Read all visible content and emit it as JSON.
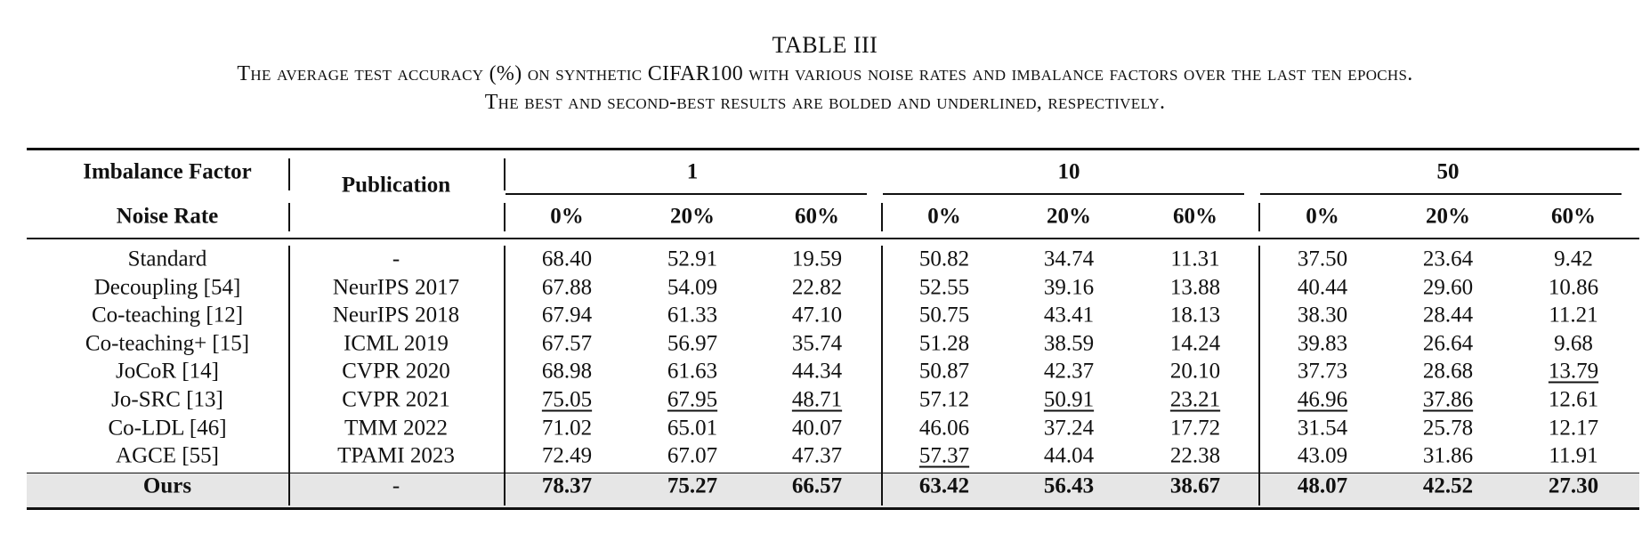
{
  "caption": {
    "title": "TABLE III",
    "line1": "The average test accuracy (%) on synthetic CIFAR100 with various noise rates and imbalance factors over the last ten epochs.",
    "line2": "The best and second-best results are bolded and underlined, respectively."
  },
  "header": {
    "imbalance_label": "Imbalance Factor",
    "noise_label": "Noise Rate",
    "publication_label": "Publication",
    "imbalance_factors": [
      "1",
      "10",
      "50"
    ],
    "noise_rates": [
      "0%",
      "20%",
      "60%",
      "0%",
      "20%",
      "60%",
      "0%",
      "20%",
      "60%"
    ]
  },
  "rows": [
    {
      "method": "Standard",
      "pub": "-",
      "values": [
        "68.40",
        "52.91",
        "19.59",
        "50.82",
        "34.74",
        "11.31",
        "37.50",
        "23.64",
        "9.42"
      ],
      "underline": []
    },
    {
      "method": "Decoupling [54]",
      "pub": "NeurIPS 2017",
      "values": [
        "67.88",
        "54.09",
        "22.82",
        "52.55",
        "39.16",
        "13.88",
        "40.44",
        "29.60",
        "10.86"
      ],
      "underline": []
    },
    {
      "method": "Co-teaching [12]",
      "pub": "NeurIPS 2018",
      "values": [
        "67.94",
        "61.33",
        "47.10",
        "50.75",
        "43.41",
        "18.13",
        "38.30",
        "28.44",
        "11.21"
      ],
      "underline": []
    },
    {
      "method": "Co-teaching+ [15]",
      "pub": "ICML 2019",
      "values": [
        "67.57",
        "56.97",
        "35.74",
        "51.28",
        "38.59",
        "14.24",
        "39.83",
        "26.64",
        "9.68"
      ],
      "underline": []
    },
    {
      "method": "JoCoR [14]",
      "pub": "CVPR 2020",
      "values": [
        "68.98",
        "61.63",
        "44.34",
        "50.87",
        "42.37",
        "20.10",
        "37.73",
        "28.68",
        "13.79"
      ],
      "underline": [
        8
      ]
    },
    {
      "method": "Jo-SRC [13]",
      "pub": "CVPR 2021",
      "values": [
        "75.05",
        "67.95",
        "48.71",
        "57.12",
        "50.91",
        "23.21",
        "46.96",
        "37.86",
        "12.61"
      ],
      "underline": [
        0,
        1,
        2,
        4,
        5,
        6,
        7
      ]
    },
    {
      "method": "Co-LDL [46]",
      "pub": "TMM 2022",
      "values": [
        "71.02",
        "65.01",
        "40.07",
        "46.06",
        "37.24",
        "17.72",
        "31.54",
        "25.78",
        "12.17"
      ],
      "underline": []
    },
    {
      "method": "AGCE [55]",
      "pub": "TPAMI 2023",
      "values": [
        "72.49",
        "67.07",
        "47.37",
        "57.37",
        "44.04",
        "22.38",
        "43.09",
        "31.86",
        "11.91"
      ],
      "underline": [
        3
      ]
    }
  ],
  "ours": {
    "method": "Ours",
    "pub": "-",
    "values": [
      "78.37",
      "75.27",
      "66.57",
      "63.42",
      "56.43",
      "38.67",
      "48.07",
      "42.52",
      "27.30"
    ]
  }
}
